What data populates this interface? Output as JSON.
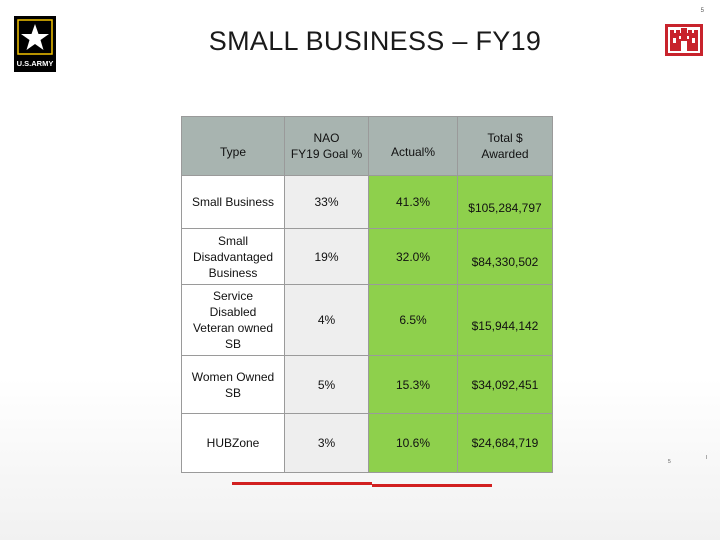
{
  "page_number": "5",
  "title": "SMALL BUSINESS – FY19",
  "army_logo_text": "U.S.ARMY",
  "colors": {
    "header_bg": "#a8b4b0",
    "green_cells": "#8ed04c",
    "red_rule": "#d22020",
    "usace_red": "#c8232c"
  },
  "table": {
    "headers": {
      "type": "Type",
      "goal_line1": "NAO",
      "goal_line2": "FY19 Goal %",
      "actual": "Actual%",
      "total_line1": "Total $",
      "total_line2": "Awarded"
    },
    "rows": [
      {
        "type": [
          "Small Business"
        ],
        "goal": "33%",
        "actual": "41.3%",
        "total": "$105,284,797"
      },
      {
        "type": [
          "Small",
          "Disadvantaged",
          "Business"
        ],
        "goal": "19%",
        "actual": "32.0%",
        "total": "$84,330,502"
      },
      {
        "type": [
          "Service",
          "Disabled",
          "Veteran owned",
          "SB"
        ],
        "goal": "4%",
        "actual": "6.5%",
        "total": "$15,944,142"
      },
      {
        "type": [
          "Women Owned",
          "SB"
        ],
        "goal": "5%",
        "actual": "15.3%",
        "total": "$34,092,451"
      },
      {
        "type": [
          "HUBZone"
        ],
        "goal": "3%",
        "actual": "10.6%",
        "total": "$24,684,719"
      }
    ]
  },
  "footnote_a": "5",
  "footnote_b": "I"
}
